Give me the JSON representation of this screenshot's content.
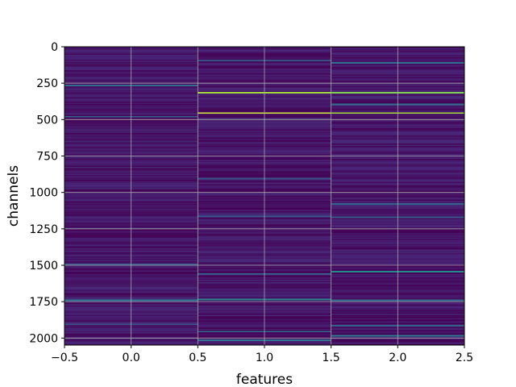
{
  "chart_data": {
    "type": "heatmap",
    "title": "",
    "xlabel": "features",
    "ylabel": "channels",
    "xlim": [
      -0.5,
      2.5
    ],
    "ylim": [
      2048,
      0
    ],
    "y_inverted": true,
    "n_columns": 3,
    "n_rows": 2048,
    "colormap": "viridis",
    "grid": true,
    "grid_color": "#b0b0b0",
    "background_value_range": [
      0.0,
      0.15
    ],
    "x_ticks": [
      -0.5,
      0.0,
      0.5,
      1.0,
      1.5,
      2.0,
      2.5
    ],
    "x_tick_labels": [
      "−0.5",
      "0.0",
      "0.5",
      "1.0",
      "1.5",
      "2.0",
      "2.5"
    ],
    "y_ticks": [
      0,
      250,
      500,
      750,
      1000,
      1250,
      1500,
      1750,
      2000
    ],
    "y_tick_labels": [
      "0",
      "250",
      "500",
      "750",
      "1000",
      "1250",
      "1500",
      "1750",
      "2000"
    ],
    "highlights": [
      {
        "feature": 0,
        "channel": 265,
        "value": 0.45
      },
      {
        "feature": 0,
        "channel": 480,
        "value": 0.4
      },
      {
        "feature": 0,
        "channel": 1495,
        "value": 0.35
      },
      {
        "feature": 0,
        "channel": 1740,
        "value": 0.5
      },
      {
        "feature": 0,
        "channel": 1905,
        "value": 0.35
      },
      {
        "feature": 1,
        "channel": 95,
        "value": 0.4
      },
      {
        "feature": 1,
        "channel": 315,
        "value": 0.9
      },
      {
        "feature": 1,
        "channel": 455,
        "value": 0.95
      },
      {
        "feature": 1,
        "channel": 905,
        "value": 0.35
      },
      {
        "feature": 1,
        "channel": 1165,
        "value": 0.35
      },
      {
        "feature": 1,
        "channel": 1560,
        "value": 0.45
      },
      {
        "feature": 1,
        "channel": 1735,
        "value": 0.6
      },
      {
        "feature": 1,
        "channel": 1955,
        "value": 0.45
      },
      {
        "feature": 1,
        "channel": 2015,
        "value": 0.5
      },
      {
        "feature": 2,
        "channel": 110,
        "value": 0.45
      },
      {
        "feature": 2,
        "channel": 315,
        "value": 0.85
      },
      {
        "feature": 2,
        "channel": 395,
        "value": 0.45
      },
      {
        "feature": 2,
        "channel": 455,
        "value": 0.9
      },
      {
        "feature": 2,
        "channel": 1080,
        "value": 0.4
      },
      {
        "feature": 2,
        "channel": 1170,
        "value": 0.35
      },
      {
        "feature": 2,
        "channel": 1545,
        "value": 0.6
      },
      {
        "feature": 2,
        "channel": 1740,
        "value": 0.45
      },
      {
        "feature": 2,
        "channel": 1915,
        "value": 0.4
      },
      {
        "feature": 2,
        "channel": 1985,
        "value": 0.5
      }
    ]
  }
}
